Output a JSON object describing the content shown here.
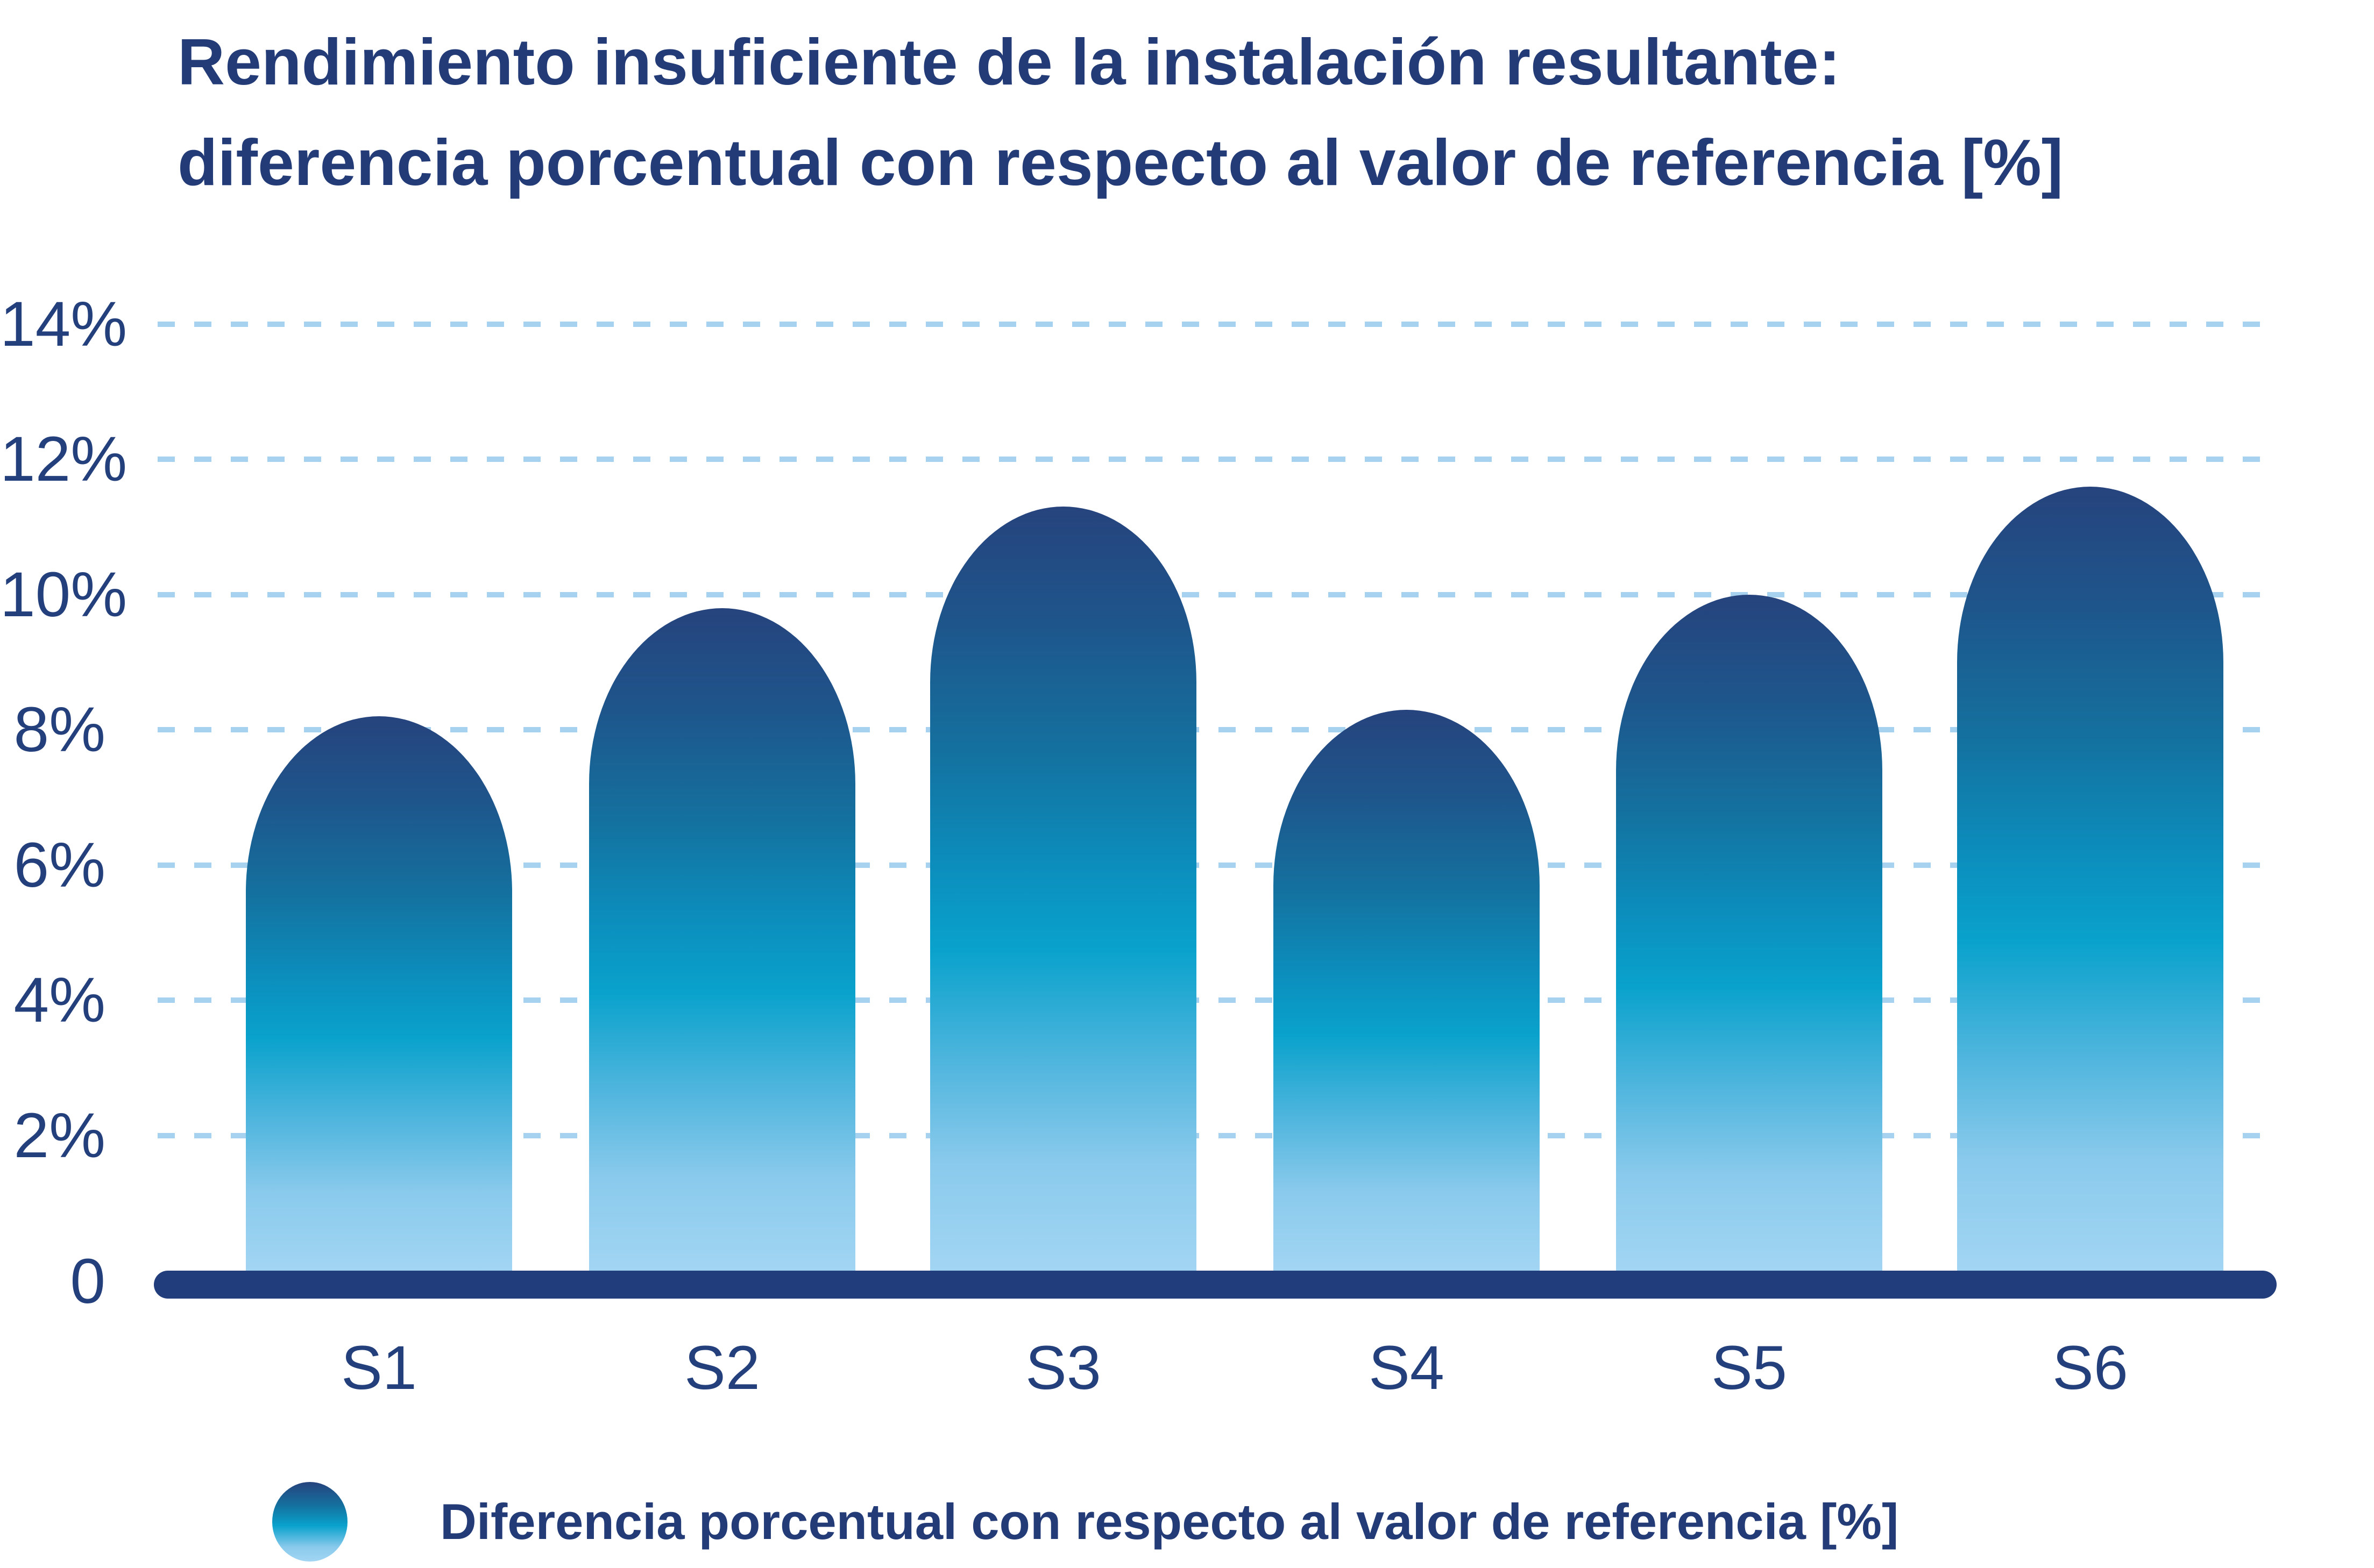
{
  "title": {
    "line1": "Rendimiento insuficiente de la instalación resultante:",
    "line2": "diferencia porcentual con respecto al valor de referencia [%]"
  },
  "legend": {
    "marker": "gradient-circle",
    "label": "Diferencia porcentual con respecto al valor de referencia [%]"
  },
  "colors": {
    "text_navy": "#233B76",
    "axis_navy": "#223D7B",
    "gridline_blue": "#A6D1EF",
    "bar_gradient_top": "#26437D",
    "bar_gradient_mid": "#09A2CC",
    "bar_gradient_bottom": "#A2D5F3"
  },
  "chart_data": {
    "type": "bar",
    "title": "Rendimiento insuficiente de la instalación resultante: diferencia porcentual con respecto al valor de referencia [%]",
    "categories": [
      "S1",
      "S2",
      "S3",
      "S4",
      "S5",
      "S6"
    ],
    "values": [
      8.2,
      9.8,
      11.3,
      8.3,
      10.0,
      11.6
    ],
    "unit": "%",
    "xlabel": "",
    "ylabel": "",
    "ylim": [
      0,
      14
    ],
    "ytick_step": 2,
    "ytick_labels": [
      "0",
      "2%",
      "4%",
      "6%",
      "8%",
      "10%",
      "12%",
      "14%"
    ],
    "grid": "horizontal-dashed",
    "legend_entries": [
      "Diferencia porcentual con respecto al valor de referencia [%]"
    ],
    "legend_position": "bottom-left",
    "bar_style": "rounded-top-vertical-gradient"
  }
}
